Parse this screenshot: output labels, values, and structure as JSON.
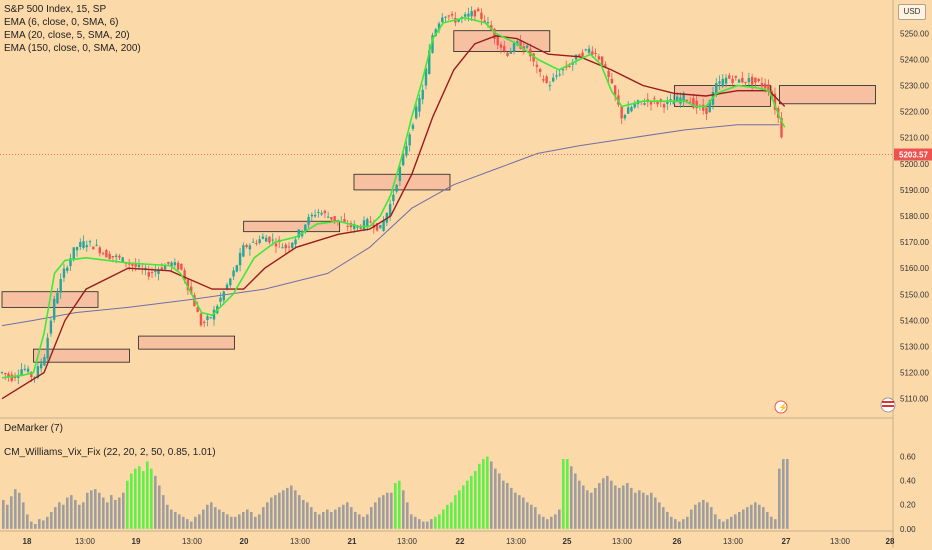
{
  "header": {
    "symbol": "S&P 500 Index, 15, SP",
    "currency": "USD"
  },
  "indicators": {
    "ema6": "EMA (6, close, 0, SMA, 6)",
    "ema20": "EMA (20, close, 5, SMA, 20)",
    "ema150": "EMA (150, close, 0, SMA, 200)",
    "demarker": "DeMarker (7)",
    "vix_fix": "CM_Williams_Vix_Fix (22, 20, 2, 50, 0.85, 1.01)"
  },
  "colors": {
    "background": "#fcd9a9",
    "up_candle": "#26a69a",
    "down_candle": "#ef5350",
    "ema6": "#3fe83a",
    "ema20": "#9a1c1c",
    "ema150": "#6f6fa8",
    "zone_fill": "#f7c0a0",
    "vix_normal": "#9e9e9e",
    "vix_high": "#5ff04a",
    "last_price_tag": "#ef5350"
  },
  "chart_data": [
    {
      "type": "candlestick",
      "title": "S&P 500 Index, 15, SP",
      "y_axis_side": "right",
      "ylim": [
        5103,
        5262
      ],
      "y_ticks": [
        "5250.00",
        "5240.00",
        "5230.00",
        "5220.00",
        "5210.00",
        "5200.00",
        "5190.00",
        "5180.00",
        "5170.00",
        "5160.00",
        "5150.00",
        "5140.00",
        "5130.00",
        "5120.00",
        "5110.00"
      ],
      "x_ticks": [
        "18",
        "13:00",
        "19",
        "13:00",
        "20",
        "13:00",
        "21",
        "13:00",
        "22",
        "13:00",
        "25",
        "13:00",
        "26",
        "13:00",
        "27",
        "13:00",
        "28"
      ],
      "last_price": "5203.57",
      "close_path": [
        [
          0,
          5120
        ],
        [
          4,
          5118
        ],
        [
          8,
          5122
        ],
        [
          12,
          5118
        ],
        [
          16,
          5126
        ],
        [
          20,
          5148
        ],
        [
          24,
          5160
        ],
        [
          28,
          5168
        ],
        [
          32,
          5170
        ],
        [
          36,
          5168
        ],
        [
          40,
          5165
        ],
        [
          44,
          5164
        ],
        [
          48,
          5162
        ],
        [
          52,
          5160
        ],
        [
          56,
          5158
        ],
        [
          60,
          5160
        ],
        [
          64,
          5162
        ],
        [
          68,
          5160
        ],
        [
          72,
          5150
        ],
        [
          76,
          5138
        ],
        [
          80,
          5142
        ],
        [
          84,
          5150
        ],
        [
          88,
          5158
        ],
        [
          92,
          5168
        ],
        [
          96,
          5170
        ],
        [
          100,
          5172
        ],
        [
          104,
          5170
        ],
        [
          108,
          5168
        ],
        [
          112,
          5172
        ],
        [
          116,
          5178
        ],
        [
          120,
          5182
        ],
        [
          124,
          5180
        ],
        [
          128,
          5178
        ],
        [
          132,
          5176
        ],
        [
          136,
          5176
        ],
        [
          140,
          5178
        ],
        [
          144,
          5175
        ],
        [
          148,
          5185
        ],
        [
          152,
          5200
        ],
        [
          156,
          5215
        ],
        [
          160,
          5228
        ],
        [
          164,
          5250
        ],
        [
          168,
          5258
        ],
        [
          172,
          5255
        ],
        [
          176,
          5256
        ],
        [
          180,
          5258
        ],
        [
          184,
          5255
        ],
        [
          188,
          5248
        ],
        [
          192,
          5242
        ],
        [
          196,
          5246
        ],
        [
          200,
          5244
        ],
        [
          204,
          5235
        ],
        [
          208,
          5230
        ],
        [
          212,
          5235
        ],
        [
          216,
          5238
        ],
        [
          220,
          5242
        ],
        [
          224,
          5244
        ],
        [
          228,
          5240
        ],
        [
          232,
          5230
        ],
        [
          236,
          5218
        ],
        [
          240,
          5222
        ],
        [
          244,
          5224
        ],
        [
          248,
          5224
        ],
        [
          252,
          5223
        ],
        [
          256,
          5224
        ],
        [
          260,
          5226
        ],
        [
          264,
          5222
        ],
        [
          268,
          5220
        ],
        [
          272,
          5230
        ],
        [
          276,
          5233
        ],
        [
          280,
          5232
        ],
        [
          284,
          5232
        ],
        [
          288,
          5231
        ],
        [
          292,
          5229
        ],
        [
          296,
          5216
        ],
        [
          298,
          5203.57
        ]
      ],
      "ema6_path": [
        [
          0,
          5118
        ],
        [
          8,
          5119
        ],
        [
          12,
          5120
        ],
        [
          16,
          5135
        ],
        [
          20,
          5158
        ],
        [
          24,
          5163
        ],
        [
          32,
          5164
        ],
        [
          48,
          5162
        ],
        [
          64,
          5161
        ],
        [
          68,
          5158
        ],
        [
          76,
          5143
        ],
        [
          80,
          5142
        ],
        [
          88,
          5150
        ],
        [
          96,
          5164
        ],
        [
          104,
          5170
        ],
        [
          112,
          5172
        ],
        [
          120,
          5177
        ],
        [
          128,
          5178
        ],
        [
          136,
          5176
        ],
        [
          140,
          5176
        ],
        [
          144,
          5180
        ],
        [
          148,
          5188
        ],
        [
          152,
          5202
        ],
        [
          156,
          5218
        ],
        [
          160,
          5232
        ],
        [
          164,
          5248
        ],
        [
          168,
          5254
        ],
        [
          176,
          5256
        ],
        [
          184,
          5254
        ],
        [
          188,
          5250
        ],
        [
          196,
          5246
        ],
        [
          204,
          5240
        ],
        [
          212,
          5236
        ],
        [
          220,
          5240
        ],
        [
          224,
          5242
        ],
        [
          228,
          5238
        ],
        [
          232,
          5228
        ],
        [
          236,
          5222
        ],
        [
          244,
          5224
        ],
        [
          260,
          5224
        ],
        [
          264,
          5222
        ],
        [
          268,
          5222
        ],
        [
          272,
          5227
        ],
        [
          280,
          5230
        ],
        [
          288,
          5229
        ],
        [
          292,
          5228
        ],
        [
          296,
          5218
        ],
        [
          298,
          5214
        ]
      ],
      "ema20_path": [
        [
          0,
          5110
        ],
        [
          16,
          5120
        ],
        [
          24,
          5140
        ],
        [
          32,
          5152
        ],
        [
          48,
          5160
        ],
        [
          64,
          5159
        ],
        [
          80,
          5152
        ],
        [
          92,
          5152
        ],
        [
          100,
          5160
        ],
        [
          112,
          5168
        ],
        [
          128,
          5173
        ],
        [
          140,
          5175
        ],
        [
          148,
          5180
        ],
        [
          156,
          5196
        ],
        [
          164,
          5218
        ],
        [
          172,
          5236
        ],
        [
          180,
          5246
        ],
        [
          188,
          5249
        ],
        [
          196,
          5248
        ],
        [
          208,
          5242
        ],
        [
          220,
          5241
        ],
        [
          232,
          5236
        ],
        [
          244,
          5230
        ],
        [
          256,
          5227
        ],
        [
          268,
          5226
        ],
        [
          280,
          5228
        ],
        [
          292,
          5228
        ],
        [
          298,
          5222
        ]
      ],
      "ema150_path": [
        [
          0,
          5138
        ],
        [
          12,
          5140
        ],
        [
          28,
          5143
        ],
        [
          48,
          5145
        ],
        [
          72,
          5148
        ],
        [
          100,
          5152
        ],
        [
          124,
          5158
        ],
        [
          140,
          5168
        ],
        [
          156,
          5183
        ],
        [
          172,
          5192
        ],
        [
          188,
          5198
        ],
        [
          204,
          5204
        ],
        [
          220,
          5207
        ],
        [
          240,
          5210
        ],
        [
          260,
          5213
        ],
        [
          280,
          5215
        ],
        [
          296,
          5215
        ]
      ],
      "zones": [
        {
          "day_index": 0,
          "top": 5151,
          "bottom": 5145
        },
        {
          "day_index": 12,
          "top": 5129,
          "bottom": 5124
        },
        {
          "day_index": 52,
          "top": 5134,
          "bottom": 5129
        },
        {
          "day_index": 92,
          "top": 5178,
          "bottom": 5174
        },
        {
          "day_index": 134,
          "top": 5196,
          "bottom": 5190
        },
        {
          "day_index": 172,
          "top": 5251,
          "bottom": 5243
        },
        {
          "day_index": 256,
          "top": 5230,
          "bottom": 5222
        },
        {
          "day_index": 296,
          "top": 5230,
          "bottom": 5223
        }
      ]
    },
    {
      "type": "bar",
      "title": "CM_Williams_Vix_Fix (22, 20, 2, 50, 0.85, 1.01)",
      "ylim": [
        -0.01,
        0.68
      ],
      "y_ticks": [
        "0.60",
        "0.40",
        "0.20",
        "0.00"
      ],
      "values": [
        0.24,
        0.2,
        0.27,
        0.33,
        0.3,
        0.22,
        0.12,
        0.06,
        0.04,
        0.08,
        0.07,
        0.1,
        0.14,
        0.18,
        0.22,
        0.2,
        0.26,
        0.28,
        0.24,
        0.2,
        0.22,
        0.3,
        0.32,
        0.33,
        0.3,
        0.26,
        0.22,
        0.28,
        0.24,
        0.26,
        0.3,
        0.4,
        0.46,
        0.5,
        0.52,
        0.48,
        0.56,
        0.5,
        0.44,
        0.36,
        0.28,
        0.2,
        0.16,
        0.14,
        0.12,
        0.1,
        0.08,
        0.06,
        0.1,
        0.12,
        0.16,
        0.2,
        0.22,
        0.18,
        0.16,
        0.14,
        0.12,
        0.1,
        0.1,
        0.12,
        0.14,
        0.16,
        0.14,
        0.1,
        0.12,
        0.18,
        0.22,
        0.26,
        0.28,
        0.3,
        0.32,
        0.34,
        0.36,
        0.32,
        0.28,
        0.24,
        0.22,
        0.18,
        0.14,
        0.12,
        0.14,
        0.16,
        0.14,
        0.16,
        0.18,
        0.2,
        0.22,
        0.18,
        0.14,
        0.12,
        0.1,
        0.12,
        0.18,
        0.22,
        0.26,
        0.28,
        0.3,
        0.3,
        0.38,
        0.4,
        0.32,
        0.22,
        0.12,
        0.1,
        0.08,
        0.06,
        0.06,
        0.08,
        0.1,
        0.12,
        0.16,
        0.2,
        0.22,
        0.28,
        0.32,
        0.36,
        0.4,
        0.44,
        0.48,
        0.54,
        0.58,
        0.6,
        0.56,
        0.5,
        0.46,
        0.4,
        0.38,
        0.34,
        0.3,
        0.28,
        0.26,
        0.22,
        0.2,
        0.18,
        0.12,
        0.1,
        0.08,
        0.1,
        0.12,
        0.16,
        0.58,
        0.58,
        0.52,
        0.46,
        0.4,
        0.36,
        0.32,
        0.3,
        0.34,
        0.38,
        0.42,
        0.44,
        0.4,
        0.36,
        0.34,
        0.36,
        0.38,
        0.34,
        0.3,
        0.32,
        0.3,
        0.28,
        0.3,
        0.26,
        0.22,
        0.18,
        0.14,
        0.1,
        0.08,
        0.06,
        0.08,
        0.1,
        0.16,
        0.2,
        0.22,
        0.24,
        0.22,
        0.18,
        0.12,
        0.08,
        0.06,
        0.08,
        0.1,
        0.12,
        0.14,
        0.16,
        0.18,
        0.2,
        0.22,
        0.2,
        0.18,
        0.14,
        0.1,
        0.08,
        0.5,
        0.58,
        0.58
      ],
      "high_indices": [
        31,
        32,
        33,
        34,
        35,
        36,
        37,
        98,
        99,
        108,
        109,
        110,
        111,
        112,
        113,
        114,
        115,
        116,
        117,
        118,
        119,
        120,
        121,
        140,
        141,
        197,
        198,
        199
      ]
    }
  ]
}
